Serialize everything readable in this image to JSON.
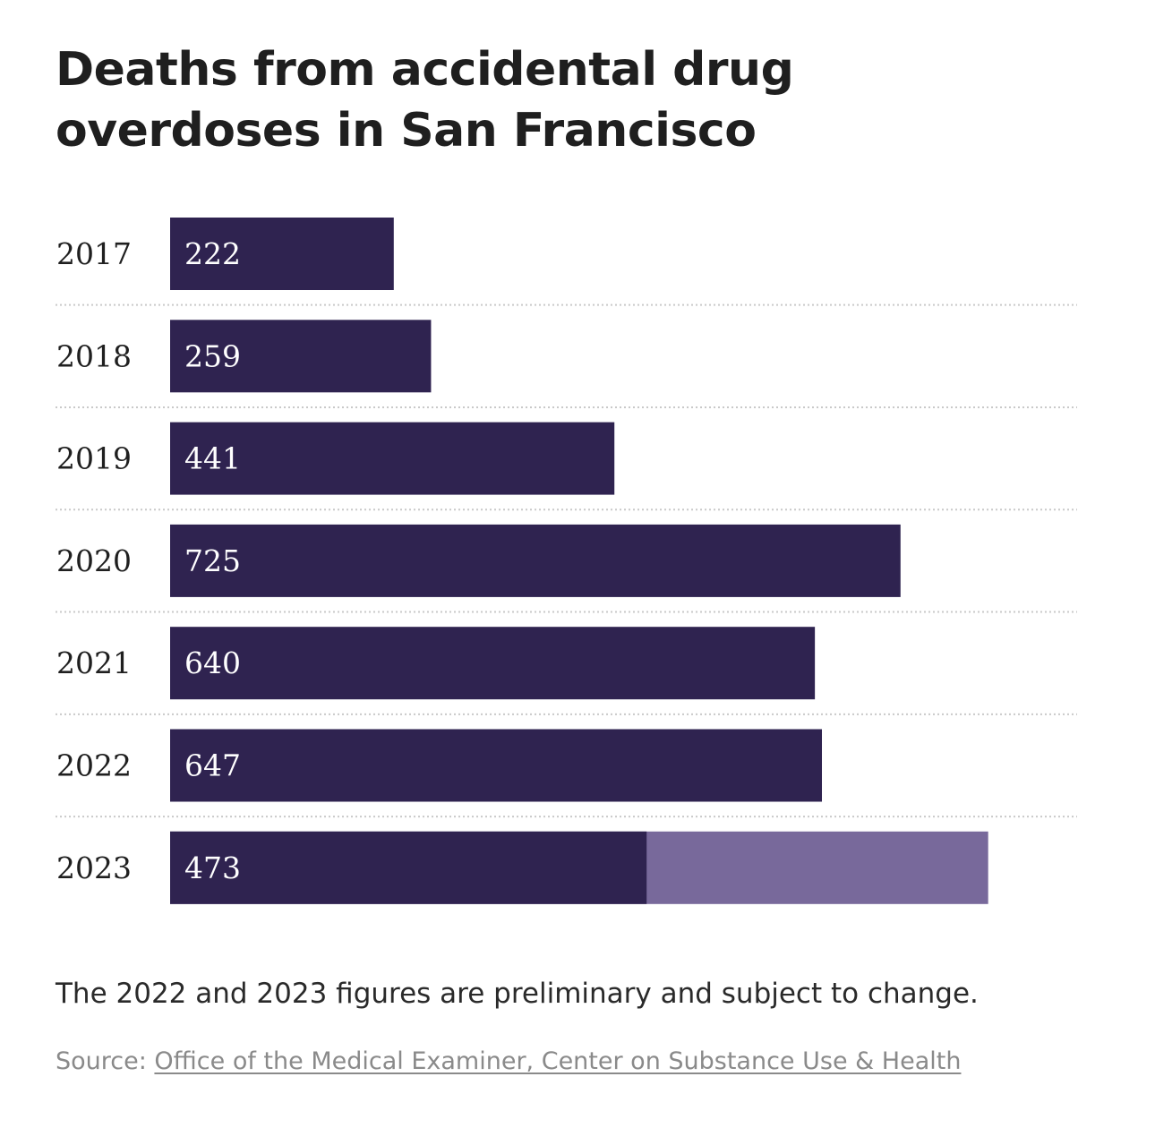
{
  "chart_data": {
    "type": "bar",
    "orientation": "horizontal",
    "title": "Deaths from accidental drug overdoses in San Francisco",
    "categories": [
      "2017",
      "2018",
      "2019",
      "2020",
      "2021",
      "2022",
      "2023"
    ],
    "values": [
      222,
      259,
      441,
      725,
      640,
      647,
      473
    ],
    "value_labels": [
      "222",
      "259",
      "441",
      "725",
      "640",
      "647",
      "473"
    ],
    "projected_extension": {
      "category": "2023",
      "value": 812
    },
    "xlim": [
      0,
      900
    ],
    "grid": "dotted separators between rows",
    "colors": {
      "bar": "#2f2350",
      "projection": "#78699b",
      "separator": "#c9c9c9"
    }
  },
  "note": "The 2022 and 2023 figures are preliminary and subject to change.",
  "source": {
    "label": "Source: ",
    "link_text": "Office of the Medical Examiner, Center on Substance Use & Health"
  }
}
